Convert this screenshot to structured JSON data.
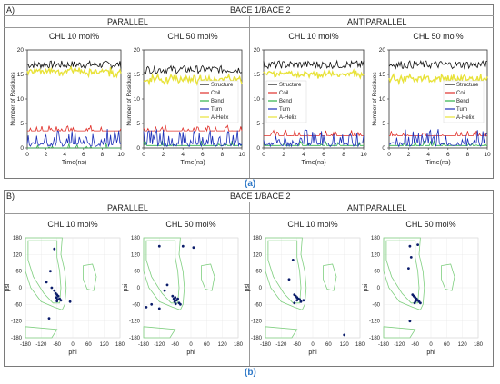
{
  "figure": {
    "top": {
      "label": "A)",
      "title": "BACE 1/BACE 2",
      "sections": [
        "PARALLEL",
        "ANTIPARALLEL"
      ],
      "caption": "(a)"
    },
    "bottom": {
      "label": "B)",
      "title": "BACE 1/BACE 2",
      "sections": [
        "PARALLEL",
        "ANTIPARALLEL"
      ],
      "caption": "(b)"
    }
  },
  "chart_data": [
    {
      "type": "line",
      "group": "A",
      "section": "PARALLEL",
      "title": "CHL 10 mol%",
      "xlabel": "Time(ns)",
      "ylabel": "Number of Residues",
      "xlim": [
        0,
        10
      ],
      "ylim": [
        0,
        20
      ],
      "xticks": [
        0,
        2,
        4,
        6,
        8,
        10
      ],
      "yticks": [
        0,
        5,
        10,
        15,
        20
      ],
      "legend": "none",
      "series": [
        {
          "name": "Structure",
          "color": "#111111",
          "approx_level": 17
        },
        {
          "name": "Coil",
          "color": "#e0302a",
          "approx_level": 3.5
        },
        {
          "name": "Bend",
          "color": "#2fb24a",
          "approx_level": 0
        },
        {
          "name": "Turn",
          "color": "#1c2fb8",
          "approx_level": 1.5
        },
        {
          "name": "A-Helix",
          "color": "#e8e23a",
          "approx_level": 16.5
        }
      ]
    },
    {
      "type": "line",
      "group": "A",
      "section": "PARALLEL",
      "title": "CHL 50 mol%",
      "xlabel": "Time(ns)",
      "ylabel": "Number of Residues",
      "xlim": [
        0,
        10
      ],
      "ylim": [
        0,
        20
      ],
      "xticks": [
        0,
        2,
        4,
        6,
        8,
        10
      ],
      "yticks": [
        0,
        5,
        10,
        15,
        20
      ],
      "legend": "middle-right",
      "series": [
        {
          "name": "Structure",
          "color": "#111111",
          "approx_level": 16
        },
        {
          "name": "Coil",
          "color": "#e0302a",
          "approx_level": 3.5
        },
        {
          "name": "Bend",
          "color": "#2fb24a",
          "approx_level": 0.5
        },
        {
          "name": "Turn",
          "color": "#1c2fb8",
          "approx_level": 1.5
        },
        {
          "name": "A-Helix",
          "color": "#e8e23a",
          "approx_level": 15
        }
      ]
    },
    {
      "type": "line",
      "group": "A",
      "section": "ANTIPARALLEL",
      "title": "CHL 10 mol%",
      "xlabel": "Time(ns)",
      "ylabel": "",
      "xlim": [
        0,
        10
      ],
      "ylim": [
        0,
        20
      ],
      "xticks": [
        0,
        2,
        4,
        6,
        8,
        10
      ],
      "yticks": [
        0,
        5,
        10,
        15,
        20
      ],
      "legend": "middle-left",
      "series": [
        {
          "name": "Structure",
          "color": "#111111",
          "approx_level": 17
        },
        {
          "name": "Coil",
          "color": "#e0302a",
          "approx_level": 2.5
        },
        {
          "name": "Bend",
          "color": "#2fb24a",
          "approx_level": 0.5
        },
        {
          "name": "Turn",
          "color": "#1c2fb8",
          "approx_level": 1.5
        },
        {
          "name": "A-Helix",
          "color": "#e8e23a",
          "approx_level": 16
        }
      ]
    },
    {
      "type": "line",
      "group": "A",
      "section": "ANTIPARALLEL",
      "title": "CHL 50 mol%",
      "xlabel": "Time(ns)",
      "ylabel": "Number of Residues",
      "xlim": [
        0,
        10
      ],
      "ylim": [
        0,
        20
      ],
      "xticks": [
        0,
        2,
        4,
        6,
        8,
        10
      ],
      "yticks": [
        0,
        5,
        10,
        15,
        20
      ],
      "legend": "middle-right",
      "series": [
        {
          "name": "Structure",
          "color": "#111111",
          "approx_level": 17
        },
        {
          "name": "Coil",
          "color": "#e0302a",
          "approx_level": 2.5
        },
        {
          "name": "Bend",
          "color": "#2fb24a",
          "approx_level": 0.5
        },
        {
          "name": "Turn",
          "color": "#1c2fb8",
          "approx_level": 1.5
        },
        {
          "name": "A-Helix",
          "color": "#e8e23a",
          "approx_level": 15
        }
      ]
    },
    {
      "type": "scatter",
      "group": "B",
      "section": "PARALLEL",
      "title": "CHL 10 mol%",
      "xlabel": "phi",
      "ylabel": "psi",
      "xlim": [
        -180,
        180
      ],
      "ylim": [
        -180,
        180
      ],
      "xticks": [
        -180,
        -120,
        -60,
        0,
        60,
        120,
        180
      ],
      "yticks": [
        -180,
        -120,
        -60,
        0,
        60,
        120,
        180
      ],
      "points": [
        [
          -70,
          140
        ],
        [
          -85,
          60
        ],
        [
          -100,
          20
        ],
        [
          -80,
          0
        ],
        [
          -70,
          -10
        ],
        [
          -65,
          -20
        ],
        [
          -60,
          -25
        ],
        [
          -55,
          -30
        ],
        [
          -62,
          -35
        ],
        [
          -50,
          -40
        ],
        [
          -58,
          -42
        ],
        [
          -45,
          -45
        ],
        [
          -60,
          -48
        ],
        [
          -10,
          -50
        ],
        [
          -90,
          -110
        ]
      ]
    },
    {
      "type": "scatter",
      "group": "B",
      "section": "PARALLEL",
      "title": "CHL 50 mol%",
      "xlabel": "phi",
      "ylabel": "psi",
      "xlim": [
        -180,
        180
      ],
      "ylim": [
        -180,
        180
      ],
      "xticks": [
        -180,
        -120,
        -60,
        0,
        60,
        120,
        180
      ],
      "yticks": [
        -180,
        -120,
        -60,
        0,
        60,
        120,
        180
      ],
      "points": [
        [
          -120,
          150
        ],
        [
          -30,
          150
        ],
        [
          10,
          145
        ],
        [
          -90,
          10
        ],
        [
          -100,
          -10
        ],
        [
          -150,
          -60
        ],
        [
          -170,
          -70
        ],
        [
          -120,
          -75
        ],
        [
          -70,
          -30
        ],
        [
          -65,
          -40
        ],
        [
          -60,
          -35
        ],
        [
          -55,
          -45
        ],
        [
          -50,
          -40
        ],
        [
          -62,
          -50
        ],
        [
          -45,
          -55
        ],
        [
          -58,
          -58
        ],
        [
          -40,
          -60
        ]
      ]
    },
    {
      "type": "scatter",
      "group": "B",
      "section": "ANTIPARALLEL",
      "title": "CHL 10 mol%",
      "xlabel": "phi",
      "ylabel": "psi",
      "xlim": [
        -180,
        180
      ],
      "ylim": [
        -180,
        180
      ],
      "xticks": [
        -180,
        -120,
        -60,
        0,
        60,
        120,
        180
      ],
      "yticks": [
        -180,
        -120,
        -60,
        0,
        60,
        120,
        180
      ],
      "points": [
        [
          -75,
          100
        ],
        [
          -90,
          30
        ],
        [
          -70,
          -25
        ],
        [
          -65,
          -30
        ],
        [
          -60,
          -35
        ],
        [
          -55,
          -40
        ],
        [
          -60,
          -45
        ],
        [
          -50,
          -42
        ],
        [
          -45,
          -50
        ],
        [
          -35,
          -45
        ],
        [
          -70,
          -55
        ],
        [
          120,
          -170
        ]
      ]
    },
    {
      "type": "scatter",
      "group": "B",
      "section": "ANTIPARALLEL",
      "title": "CHL 50 mol%",
      "xlabel": "phi",
      "ylabel": "psi",
      "xlim": [
        -180,
        180
      ],
      "ylim": [
        -180,
        180
      ],
      "xticks": [
        -180,
        -120,
        -60,
        0,
        60,
        120,
        180
      ],
      "yticks": [
        -180,
        -120,
        -60,
        0,
        60,
        120,
        180
      ],
      "points": [
        [
          -80,
          150
        ],
        [
          -50,
          155
        ],
        [
          -75,
          110
        ],
        [
          -85,
          70
        ],
        [
          -70,
          -25
        ],
        [
          -65,
          -30
        ],
        [
          -60,
          -35
        ],
        [
          -55,
          -40
        ],
        [
          -50,
          -45
        ],
        [
          -45,
          -50
        ],
        [
          -58,
          -48
        ],
        [
          -40,
          -55
        ],
        [
          -62,
          -55
        ],
        [
          -80,
          -120
        ]
      ]
    }
  ]
}
